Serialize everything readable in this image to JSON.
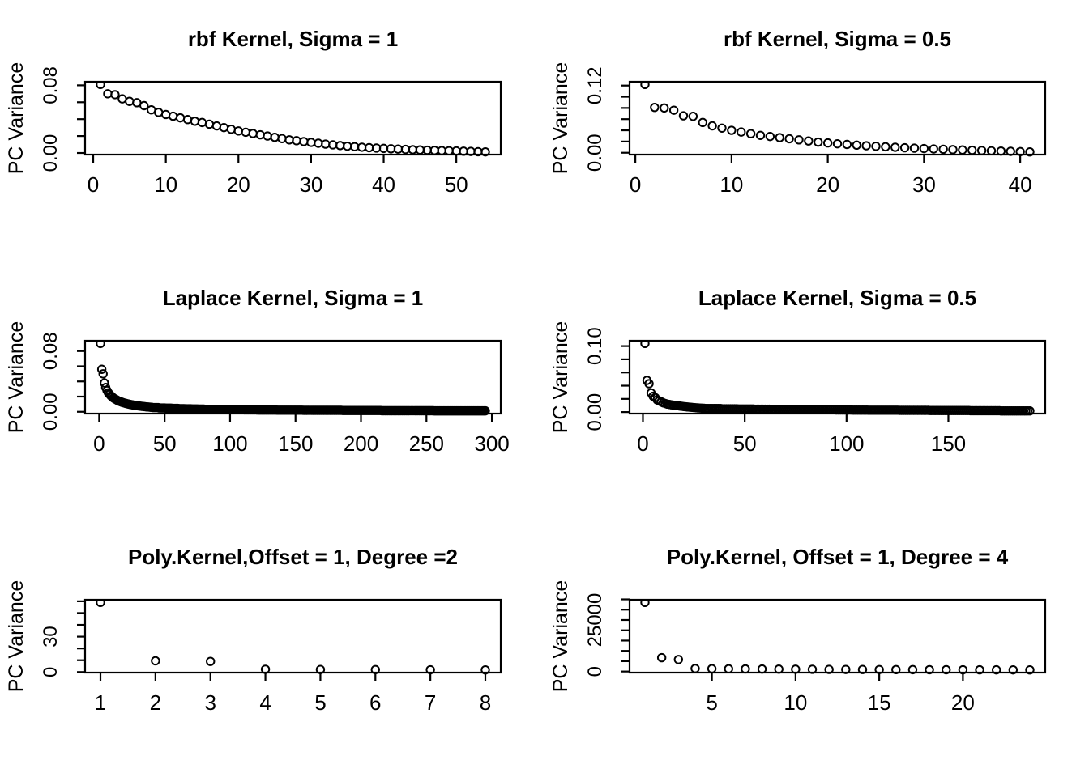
{
  "page": {
    "background": "#ffffff",
    "foreground": "#000000"
  },
  "chart_data": [
    {
      "type": "scatter",
      "title": "rbf Kernel, Sigma = 1",
      "ylabel": "PC Variance",
      "marker": "open-circle",
      "x_start": 1,
      "xlim": [
        -1.12,
        56.12
      ],
      "ylim": [
        -0.0019,
        0.0842
      ],
      "x_ticks": [
        0,
        10,
        20,
        30,
        40,
        50
      ],
      "x_tick_labels": [
        "0",
        "10",
        "20",
        "30",
        "40",
        "50"
      ],
      "y_ticks": [
        0,
        0.02,
        0.04,
        0.06,
        0.08
      ],
      "y_tick_labels": [
        "0.00",
        "",
        "",
        "",
        "0.08"
      ],
      "y": [
        0.081,
        0.07,
        0.069,
        0.064,
        0.061,
        0.0595,
        0.056,
        0.051,
        0.048,
        0.0455,
        0.0435,
        0.0415,
        0.0395,
        0.0375,
        0.036,
        0.034,
        0.032,
        0.03,
        0.028,
        0.026,
        0.0245,
        0.023,
        0.0215,
        0.02,
        0.0185,
        0.017,
        0.0155,
        0.0145,
        0.0135,
        0.0125,
        0.0115,
        0.0105,
        0.0096,
        0.0088,
        0.008,
        0.0074,
        0.0068,
        0.0063,
        0.0058,
        0.0054,
        0.005,
        0.0046,
        0.0042,
        0.0039,
        0.0036,
        0.0033,
        0.003,
        0.0028,
        0.0026,
        0.0024,
        0.0021,
        0.0018,
        0.0015,
        0.0013
      ]
    },
    {
      "type": "scatter",
      "title": "rbf Kernel, Sigma = 0.5",
      "ylabel": "PC Variance",
      "marker": "open-circle",
      "x_start": 1,
      "xlim": [
        -0.6,
        42.6
      ],
      "ylim": [
        -0.0033,
        0.1268
      ],
      "x_ticks": [
        0,
        10,
        20,
        30,
        40
      ],
      "x_tick_labels": [
        "0",
        "10",
        "20",
        "30",
        "40"
      ],
      "y_ticks": [
        0,
        0.02,
        0.04,
        0.06,
        0.08,
        0.1,
        0.12
      ],
      "y_tick_labels": [
        "0.00",
        "",
        "",
        "",
        "",
        "",
        "0.12"
      ],
      "y": [
        0.122,
        0.081,
        0.08,
        0.076,
        0.066,
        0.065,
        0.054,
        0.048,
        0.044,
        0.04,
        0.037,
        0.034,
        0.031,
        0.029,
        0.027,
        0.025,
        0.023,
        0.021,
        0.019,
        0.0175,
        0.016,
        0.0148,
        0.0136,
        0.0125,
        0.0115,
        0.0106,
        0.0097,
        0.0089,
        0.0082,
        0.0075,
        0.0068,
        0.0062,
        0.0056,
        0.005,
        0.0045,
        0.004,
        0.0035,
        0.003,
        0.0025,
        0.002,
        0.0015
      ]
    },
    {
      "type": "scatter",
      "title": "Laplace Kernel, Sigma = 1",
      "ylabel": "PC Variance",
      "marker": "open-circle",
      "x_start": 1,
      "xlim": [
        -10.76,
        306.76
      ],
      "ylim": [
        -0.0024,
        0.0936
      ],
      "x_ticks": [
        0,
        50,
        100,
        150,
        200,
        250,
        300
      ],
      "x_tick_labels": [
        "0",
        "50",
        "100",
        "150",
        "200",
        "250",
        "300"
      ],
      "y_ticks": [
        0,
        0.02,
        0.04,
        0.06,
        0.08
      ],
      "y_tick_labels": [
        "0.00",
        "",
        "",
        "",
        "0.08"
      ],
      "y": [
        0.09,
        0.056,
        0.05,
        0.038,
        0.032,
        0.028,
        0.025,
        0.023,
        0.021,
        0.0195,
        0.018,
        0.017,
        0.016,
        0.015,
        0.0142,
        0.0135,
        0.0128,
        0.0122,
        0.0117,
        0.0112,
        0.0107,
        0.0103,
        0.0099,
        0.0095,
        0.0092,
        0.0089,
        0.0086,
        0.0083,
        0.008,
        0.0078,
        0.0075,
        0.0073,
        0.0071,
        0.0069,
        0.0067,
        0.0065,
        0.0063,
        0.0062,
        0.006,
        0.0059,
        [
          0.0055,
          5
        ],
        [
          0.005,
          5
        ],
        [
          0.0047,
          5
        ],
        [
          0.0044,
          5
        ],
        [
          0.0041,
          5
        ],
        [
          0.0039,
          5
        ],
        [
          0.0037,
          5
        ],
        [
          0.0035,
          5
        ],
        [
          0.0033,
          5
        ],
        [
          0.0031,
          5
        ],
        [
          0.0029,
          10
        ],
        [
          0.0027,
          10
        ],
        [
          0.0025,
          10
        ],
        [
          0.0023,
          15
        ],
        [
          0.0021,
          20
        ],
        [
          0.0019,
          30
        ],
        [
          0.0017,
          30
        ],
        [
          0.0014,
          40
        ],
        [
          0.0012,
          40
        ]
      ]
    },
    {
      "type": "scatter",
      "title": "Laplace Kernel, Sigma = 0.5",
      "ylabel": "PC Variance",
      "marker": "open-circle",
      "x_start": 1,
      "xlim": [
        -6.56,
        197.56
      ],
      "ylim": [
        -0.0023,
        0.1081
      ],
      "x_ticks": [
        0,
        50,
        100,
        150
      ],
      "x_tick_labels": [
        "0",
        "50",
        "100",
        "150"
      ],
      "y_ticks": [
        0,
        0.02,
        0.04,
        0.06,
        0.08,
        0.1
      ],
      "y_tick_labels": [
        "0.00",
        "",
        "",
        "",
        "",
        "0.10"
      ],
      "y": [
        0.104,
        0.048,
        0.043,
        0.029,
        0.024,
        0.022,
        0.0185,
        0.017,
        0.0155,
        0.014,
        0.013,
        0.012,
        0.0115,
        0.011,
        0.0105,
        0.01,
        0.0096,
        0.0092,
        0.0088,
        0.0084,
        0.008,
        0.0077,
        0.0074,
        0.0071,
        0.0068,
        0.0065,
        0.0063,
        0.0061,
        0.0059,
        0.0057,
        [
          0.0054,
          8
        ],
        [
          0.005,
          8
        ],
        [
          0.0047,
          8
        ],
        [
          0.0044,
          8
        ],
        [
          0.0041,
          8
        ],
        [
          0.0038,
          8
        ],
        [
          0.0036,
          8
        ],
        [
          0.0034,
          8
        ],
        [
          0.0032,
          8
        ],
        [
          0.003,
          8
        ],
        [
          0.0028,
          15
        ],
        [
          0.0026,
          15
        ],
        [
          0.0024,
          20
        ],
        [
          0.0021,
          15
        ],
        [
          0.0018,
          15
        ]
      ]
    },
    {
      "type": "scatter",
      "title": "Poly.Kernel,Offset = 1, Degree =2",
      "ylabel": "PC Variance",
      "marker": "open-circle",
      "x_start": 1,
      "xlim": [
        0.72,
        8.28
      ],
      "ylim": [
        -0.49,
        61.29
      ],
      "x_ticks": [
        1,
        2,
        3,
        4,
        5,
        6,
        7,
        8
      ],
      "x_tick_labels": [
        "1",
        "2",
        "3",
        "4",
        "5",
        "6",
        "7",
        "8"
      ],
      "y_ticks": [
        0,
        10,
        20,
        30,
        40,
        50,
        60
      ],
      "y_tick_labels": [
        "0",
        "",
        "",
        "30",
        "",
        "",
        ""
      ],
      "y": [
        59,
        9.5,
        9,
        2.3,
        2.1,
        2.0,
        1.9,
        1.8
      ]
    },
    {
      "type": "scatter",
      "title": "Poly.Kernel, Offset = 1, Degree = 4",
      "ylabel": "PC Variance",
      "marker": "open-circle",
      "x_start": 1,
      "xlim": [
        0.08,
        24.92
      ],
      "ylim": [
        -530,
        34810
      ],
      "x_ticks": [
        5,
        10,
        15,
        20
      ],
      "x_tick_labels": [
        "5",
        "10",
        "15",
        "20"
      ],
      "y_ticks": [
        0,
        5000,
        10000,
        15000,
        20000,
        25000,
        30000,
        35000
      ],
      "y_tick_labels": [
        "0",
        "",
        "",
        "",
        "",
        "25000",
        "",
        ""
      ],
      "y": [
        33500,
        6700,
        5800,
        1450,
        1350,
        1300,
        1250,
        1200,
        1150,
        1100,
        1050,
        1000,
        980,
        950,
        930,
        910,
        890,
        870,
        850,
        830,
        810,
        800,
        790,
        780
      ]
    }
  ]
}
